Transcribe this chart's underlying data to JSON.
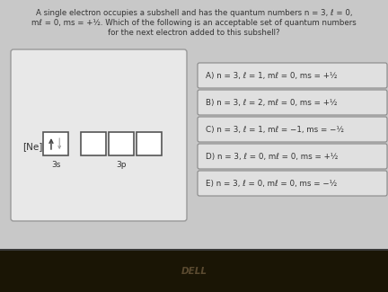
{
  "title_line1": "A single electron occupies a subshell and has the quantum numbers n = 3, ℓ = 0,",
  "title_line2": "mℓ = 0, ms = +½. Which of the following is an acceptable set of quantum numbers",
  "title_line3": "for the next electron added to this subshell?",
  "ne_label": "[Ne]",
  "label_3s": "3s",
  "label_3p": "3p",
  "options": [
    "A) n = 3, ℓ = 1, mℓ = 0, ms = +½",
    "B) n = 3, ℓ = 2, mℓ = 0, ms = +½",
    "C) n = 3, ℓ = 1, mℓ = −1, ms = −½",
    "D) n = 3, ℓ = 0, mℓ = 0, ms = +½",
    "E) n = 3, ℓ = 0, mℓ = 0, ms = −½"
  ],
  "bg_color": "#c8c8c8",
  "panel_bg": "#e8e8e8",
  "panel_border": "#999999",
  "text_color": "#333333",
  "box_edge_color": "#555555",
  "option_bg": "#e0e0e0",
  "option_border": "#888888",
  "taskbar_color": "#1a1505",
  "taskbar_line_color": "#111111",
  "dell_color": "#5a4a30",
  "arrow_color": "#444444",
  "ghost_arrow_color": "#999999"
}
